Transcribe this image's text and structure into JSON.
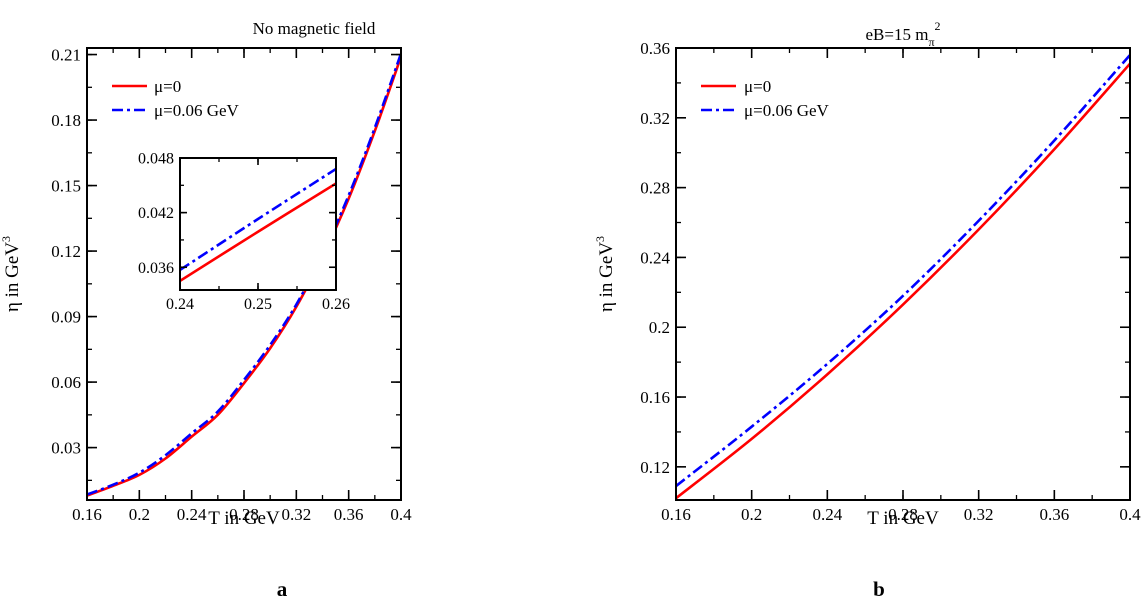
{
  "chart_data": [
    {
      "type": "line",
      "panel_label": "a",
      "title": "No magnetic field",
      "xlabel": "T in GeV",
      "ylabel_main": "η in GeV",
      "ylabel_sup": "3",
      "xlim": [
        0.16,
        0.4
      ],
      "ylim": [
        0.006,
        0.213
      ],
      "xticks": [
        "0.16",
        "0.2",
        "0.24",
        "0.28",
        "0.32",
        "0.36",
        "0.4"
      ],
      "yticks": [
        "0.03",
        "0.06",
        "0.09",
        "0.12",
        "0.15",
        "0.18",
        "0.21"
      ],
      "legend_position": "top-left",
      "grid": false,
      "series": [
        {
          "name": "μ=0",
          "color": "#ff0000",
          "dash": "solid",
          "x": [
            0.16,
            0.18,
            0.2,
            0.22,
            0.24,
            0.26,
            0.28,
            0.3,
            0.32,
            0.34,
            0.36,
            0.38,
            0.4
          ],
          "y": [
            0.008,
            0.0125,
            0.0175,
            0.025,
            0.035,
            0.045,
            0.0595,
            0.0755,
            0.0945,
            0.1175,
            0.144,
            0.175,
            0.209
          ]
        },
        {
          "name": "μ=0.06 GeV",
          "color": "#0000ff",
          "dash": "dashdot",
          "x": [
            0.16,
            0.18,
            0.2,
            0.22,
            0.24,
            0.26,
            0.28,
            0.3,
            0.32,
            0.34,
            0.36,
            0.38,
            0.4
          ],
          "y": [
            0.0085,
            0.013,
            0.0185,
            0.0265,
            0.0365,
            0.0465,
            0.061,
            0.077,
            0.0955,
            0.1185,
            0.1455,
            0.1765,
            0.2105
          ]
        }
      ],
      "inset": {
        "xlim": [
          0.24,
          0.26
        ],
        "ylim": [
          0.0335,
          0.048
        ],
        "xticks": [
          "0.24",
          "0.25",
          "0.26"
        ],
        "yticks": [
          "0.036",
          "0.042",
          "0.048"
        ],
        "series": [
          {
            "name": "μ=0",
            "color": "#ff0000",
            "dash": "solid",
            "x": [
              0.24,
              0.25,
              0.26
            ],
            "y": [
              0.0345,
              0.0399,
              0.0452
            ]
          },
          {
            "name": "μ=0.06 GeV",
            "color": "#0000ff",
            "dash": "dashdot",
            "x": [
              0.24,
              0.25,
              0.26
            ],
            "y": [
              0.0357,
              0.0413,
              0.0468
            ]
          }
        ]
      }
    },
    {
      "type": "line",
      "panel_label": "b",
      "title_main": "eB=15 m",
      "title_sub": "π",
      "title_sup": "2",
      "xlabel": "T in GeV",
      "ylabel_main": "η in GeV",
      "ylabel_sup": "3",
      "xlim": [
        0.16,
        0.4
      ],
      "ylim": [
        0.101,
        0.36
      ],
      "xticks": [
        "0.16",
        "0.2",
        "0.24",
        "0.28",
        "0.32",
        "0.36",
        "0.4"
      ],
      "yticks": [
        "0.12",
        "0.16",
        "0.2",
        "0.24",
        "0.28",
        "0.32",
        "0.36"
      ],
      "legend_position": "top-left",
      "grid": false,
      "series": [
        {
          "name": "μ=0",
          "color": "#ff0000",
          "dash": "solid",
          "x": [
            0.16,
            0.2,
            0.24,
            0.28,
            0.32,
            0.36,
            0.4
          ],
          "y": [
            0.102,
            0.136,
            0.173,
            0.213,
            0.256,
            0.302,
            0.351
          ]
        },
        {
          "name": "μ=0.06 GeV",
          "color": "#0000ff",
          "dash": "dashdot",
          "x": [
            0.16,
            0.2,
            0.24,
            0.28,
            0.32,
            0.36,
            0.4
          ],
          "y": [
            0.109,
            0.143,
            0.179,
            0.218,
            0.261,
            0.307,
            0.356
          ]
        }
      ]
    }
  ]
}
